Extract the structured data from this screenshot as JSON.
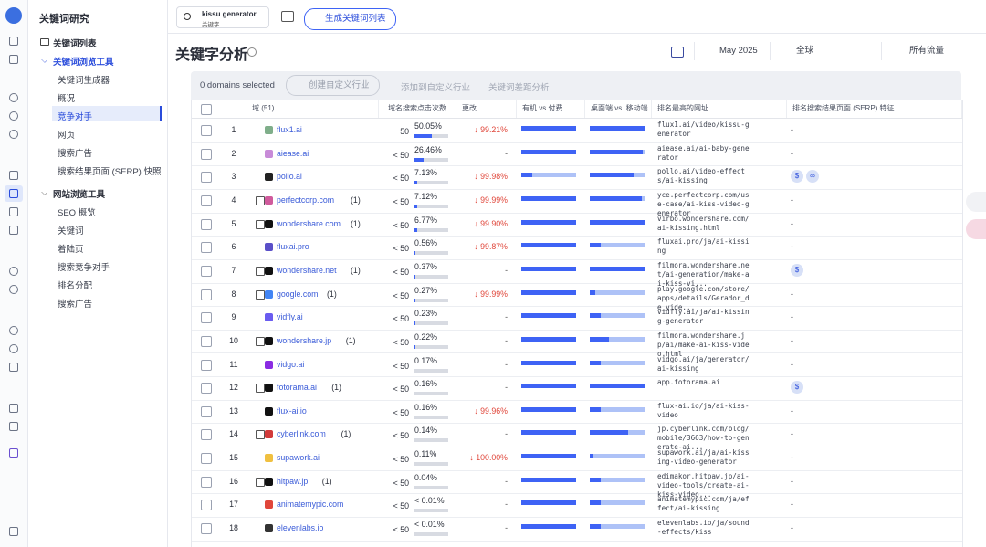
{
  "sidebar": {
    "title": "关键词研究",
    "items": [
      {
        "label": "关键词列表"
      },
      {
        "label": "关键词浏览工具",
        "children": [
          "关键词生成器",
          "概况",
          "竞争对手",
          "网页",
          "搜索广告",
          "搜索结果页面 (SERP) 快照"
        ]
      },
      {
        "label": "网站浏览工具",
        "children": [
          "SEO 概览",
          "关键词",
          "着陆页",
          "搜索竞争对手",
          "排名分配",
          "搜索广告"
        ]
      }
    ],
    "active": "竞争对手"
  },
  "topbar": {
    "query": "kissu generator",
    "query_type": "关键字",
    "generate_button": "生成关键词列表"
  },
  "header": {
    "title": "关键字分析",
    "date": "May 2025",
    "region": "全球",
    "traffic": "所有流量"
  },
  "toolbar": {
    "selected": "0 domains selected",
    "create": "创建自定义行业",
    "add": "添加到自定义行业",
    "gap": "关键词差距分析"
  },
  "table": {
    "columns": [
      "域 (51)",
      "域名搜索点击次数",
      "更改",
      "有机 vs 付费",
      "桌面端 vs. 移动端",
      "排名最高的网址",
      "排名搜索结果页面 (SERP) 特征"
    ],
    "rows": [
      {
        "rank": "1",
        "domain": "flux1.ai",
        "icon_color": "#7fae8a",
        "clicks": "50",
        "share": {
          "value": 50.05,
          "label": "50.05%"
        },
        "change": "↓ 99.21%",
        "organic": 100,
        "desktop": 100,
        "url": "flux1.ai/video/kissu-generator",
        "serp": [
          "-"
        ]
      },
      {
        "rank": "2",
        "domain": "aiease.ai",
        "icon_color": "#c88bd8",
        "clicks": "< 50",
        "share": {
          "value": 26.46,
          "label": "26.46%"
        },
        "change": "-",
        "organic": 100,
        "desktop": 96,
        "url": "aiease.ai/ai-baby-generator",
        "serp": [
          "-"
        ]
      },
      {
        "rank": "3",
        "domain": "pollo.ai",
        "icon_color": "#222222",
        "clicks": "< 50",
        "share": {
          "value": 7.13,
          "label": "7.13%"
        },
        "change": "↓ 99.98%",
        "organic": 20,
        "desktop": 80,
        "url": "pollo.ai/video-effects/ai-kissing",
        "serp": [
          "$",
          "∞"
        ]
      },
      {
        "rank": "4",
        "domain": "perfectcorp.com",
        "count": "(1)",
        "icon_color": "#d05a9c",
        "clicks": "< 50",
        "share": {
          "value": 7.12,
          "label": "7.12%"
        },
        "change": "↓ 99.99%",
        "organic": 100,
        "desktop": 95,
        "url": "yce.perfectcorp.com/use-case/ai-kiss-video-generator",
        "serp": [
          "-"
        ]
      },
      {
        "rank": "5",
        "domain": "wondershare.com",
        "count": "(1)",
        "icon_color": "#111111",
        "clicks": "< 50",
        "share": {
          "value": 6.77,
          "label": "6.77%"
        },
        "change": "↓ 99.90%",
        "organic": 100,
        "desktop": 100,
        "url": "virbo.wondershare.com/ai-kissing.html",
        "serp": [
          "-"
        ]
      },
      {
        "rank": "6",
        "domain": "fluxai.pro",
        "icon_color": "#5a4fc8",
        "clicks": "< 50",
        "share": {
          "value": 0.56,
          "label": "0.56%"
        },
        "change": "↓ 99.87%",
        "organic": 100,
        "desktop": 20,
        "url": "fluxai.pro/ja/ai-kissing",
        "serp": [
          "-"
        ]
      },
      {
        "rank": "7",
        "domain": "wondershare.net",
        "count": "(1)",
        "icon_color": "#111111",
        "clicks": "< 50",
        "share": {
          "value": 0.37,
          "label": "0.37%"
        },
        "change": "-",
        "organic": 100,
        "desktop": 100,
        "url": "filmora.wondershare.net/ai-generation/make-ai-kiss-vi...",
        "serp": [
          "$"
        ]
      },
      {
        "rank": "8",
        "domain": "google.com",
        "count": "(1)",
        "icon_color": "#4285f4",
        "clicks": "< 50",
        "share": {
          "value": 0.27,
          "label": "0.27%"
        },
        "change": "↓ 99.99%",
        "organic": 100,
        "desktop": 10,
        "url": "play.google.com/store/apps/details/Gerador_de_vide...",
        "serp": [
          "-"
        ]
      },
      {
        "rank": "9",
        "domain": "vidfly.ai",
        "icon_color": "#6a5cf0",
        "clicks": "< 50",
        "share": {
          "value": 0.23,
          "label": "0.23%"
        },
        "change": "-",
        "organic": 100,
        "desktop": 20,
        "url": "vidfly.ai/ja/ai-kissing-generator",
        "serp": [
          "-"
        ]
      },
      {
        "rank": "10",
        "domain": "wondershare.jp",
        "count": "(1)",
        "icon_color": "#111111",
        "clicks": "< 50",
        "share": {
          "value": 0.22,
          "label": "0.22%"
        },
        "change": "-",
        "organic": 100,
        "desktop": 35,
        "url": "filmora.wondershare.jp/ai/make-ai-kiss-video.html",
        "serp": [
          "-"
        ]
      },
      {
        "rank": "11",
        "domain": "vidgo.ai",
        "icon_color": "#8a2be2",
        "clicks": "< 50",
        "share": {
          "value": 0.17,
          "label": "0.17%"
        },
        "change": "-",
        "organic": 100,
        "desktop": 20,
        "url": "vidgo.ai/ja/generator/ai-kissing",
        "serp": [
          "-"
        ]
      },
      {
        "rank": "12",
        "domain": "fotorama.ai",
        "count": "(1)",
        "icon_color": "#111111",
        "clicks": "< 50",
        "share": {
          "value": 0.16,
          "label": "0.16%"
        },
        "change": "-",
        "organic": 100,
        "desktop": 100,
        "url": "app.fotorama.ai",
        "serp": [
          "$"
        ]
      },
      {
        "rank": "13",
        "domain": "flux-ai.io",
        "icon_color": "#111111",
        "clicks": "< 50",
        "share": {
          "value": 0.16,
          "label": "0.16%"
        },
        "change": "↓ 99.96%",
        "organic": 100,
        "desktop": 20,
        "url": "flux-ai.io/ja/ai-kiss-video",
        "serp": [
          "-"
        ]
      },
      {
        "rank": "14",
        "domain": "cyberlink.com",
        "count": "(1)",
        "icon_color": "#d23a3a",
        "clicks": "< 50",
        "share": {
          "value": 0.14,
          "label": "0.14%"
        },
        "change": "-",
        "organic": 100,
        "desktop": 70,
        "url": "jp.cyberlink.com/blog/mobile/3663/how-to-generate-ai...",
        "serp": [
          "-"
        ]
      },
      {
        "rank": "15",
        "domain": "supawork.ai",
        "icon_color": "#f0c040",
        "clicks": "< 50",
        "share": {
          "value": 0.11,
          "label": "0.11%"
        },
        "change": "↓ 100.00%",
        "organic": 100,
        "desktop": 5,
        "url": "supawork.ai/ja/ai-kissing-video-generator",
        "serp": [
          "-"
        ]
      },
      {
        "rank": "16",
        "domain": "hitpaw.jp",
        "count": "(1)",
        "icon_color": "#111111",
        "clicks": "< 50",
        "share": {
          "value": 0.04,
          "label": "0.04%"
        },
        "change": "-",
        "organic": 100,
        "desktop": 20,
        "url": "edimakor.hitpaw.jp/ai-video-tools/create-ai-kiss-video...",
        "serp": [
          "-"
        ]
      },
      {
        "rank": "17",
        "domain": "animatemypic.com",
        "icon_color": "#e0463a",
        "clicks": "< 50",
        "share": {
          "value": 0.01,
          "label": "< 0.01%"
        },
        "change": "-",
        "organic": 100,
        "desktop": 20,
        "url": "animatemypic.com/ja/effect/ai-kissing",
        "serp": [
          "-"
        ]
      },
      {
        "rank": "18",
        "domain": "elevenlabs.io",
        "icon_color": "#333333",
        "clicks": "< 50",
        "share": {
          "value": 0.01,
          "label": "< 0.01%"
        },
        "change": "-",
        "organic": 100,
        "desktop": 20,
        "url": "elevenlabs.io/ja/sound-effects/kiss",
        "serp": [
          "-"
        ]
      }
    ]
  }
}
